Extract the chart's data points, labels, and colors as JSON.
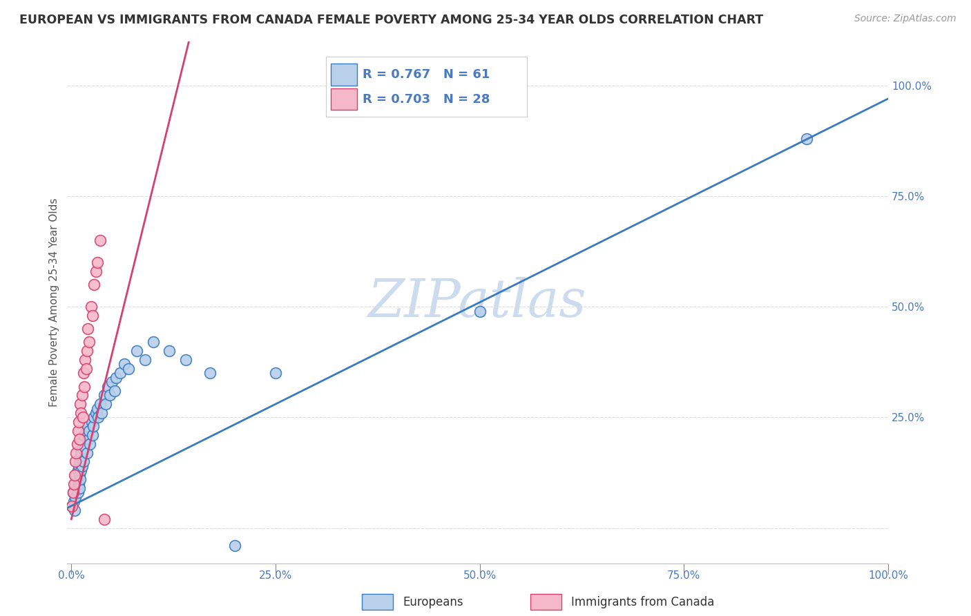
{
  "title": "EUROPEAN VS IMMIGRANTS FROM CANADA FEMALE POVERTY AMONG 25-34 YEAR OLDS CORRELATION CHART",
  "source": "Source: ZipAtlas.com",
  "ylabel": "Female Poverty Among 25-34 Year Olds",
  "xlim": [
    -0.005,
    1.0
  ],
  "ylim": [
    -0.08,
    1.1
  ],
  "x_ticks": [
    0.0,
    0.25,
    0.5,
    0.75,
    1.0
  ],
  "y_ticks": [
    0.0,
    0.25,
    0.5,
    0.75,
    1.0
  ],
  "x_tick_labels": [
    "0.0%",
    "25.0%",
    "50.0%",
    "75.0%",
    "100.0%"
  ],
  "y_tick_labels": [
    "",
    "25.0%",
    "50.0%",
    "75.0%",
    "100.0%"
  ],
  "european_R": 0.767,
  "european_N": 61,
  "canada_R": 0.703,
  "canada_N": 28,
  "european_color": "#b8d0ea",
  "canada_color": "#f5b8c8",
  "european_line_color": "#3a7abf",
  "canada_line_color": "#d44070",
  "watermark": "ZIPatlas",
  "watermark_color": "#ccdcee",
  "background_color": "#ffffff",
  "grid_color": "#dddddd",
  "tick_color": "#4a7abf",
  "eu_line_slope": 0.92,
  "eu_line_intercept": 0.05,
  "ca_line_slope": 7.5,
  "ca_line_intercept": 0.02,
  "european_x": [
    0.001,
    0.002,
    0.003,
    0.004,
    0.005,
    0.005,
    0.006,
    0.007,
    0.008,
    0.008,
    0.009,
    0.009,
    0.01,
    0.01,
    0.01,
    0.011,
    0.011,
    0.012,
    0.012,
    0.013,
    0.013,
    0.014,
    0.015,
    0.015,
    0.016,
    0.017,
    0.018,
    0.019,
    0.02,
    0.021,
    0.022,
    0.023,
    0.025,
    0.026,
    0.027,
    0.028,
    0.03,
    0.032,
    0.033,
    0.035,
    0.037,
    0.04,
    0.042,
    0.045,
    0.047,
    0.05,
    0.053,
    0.055,
    0.06,
    0.065,
    0.07,
    0.08,
    0.09,
    0.1,
    0.12,
    0.14,
    0.17,
    0.2,
    0.25,
    0.5,
    0.9
  ],
  "european_y": [
    0.05,
    0.08,
    0.06,
    0.04,
    0.1,
    0.07,
    0.12,
    0.09,
    0.13,
    0.08,
    0.14,
    0.1,
    0.15,
    0.12,
    0.09,
    0.16,
    0.11,
    0.17,
    0.13,
    0.18,
    0.14,
    0.19,
    0.2,
    0.15,
    0.21,
    0.18,
    0.22,
    0.17,
    0.23,
    0.2,
    0.22,
    0.19,
    0.24,
    0.21,
    0.23,
    0.25,
    0.26,
    0.27,
    0.25,
    0.28,
    0.26,
    0.3,
    0.28,
    0.32,
    0.3,
    0.33,
    0.31,
    0.34,
    0.35,
    0.37,
    0.36,
    0.4,
    0.38,
    0.42,
    0.4,
    0.38,
    0.35,
    -0.04,
    0.35,
    0.49,
    0.88
  ],
  "canada_x": [
    0.001,
    0.002,
    0.003,
    0.004,
    0.005,
    0.006,
    0.007,
    0.008,
    0.009,
    0.01,
    0.011,
    0.012,
    0.013,
    0.014,
    0.015,
    0.016,
    0.017,
    0.018,
    0.019,
    0.02,
    0.022,
    0.024,
    0.026,
    0.028,
    0.03,
    0.032,
    0.035,
    0.04
  ],
  "canada_y": [
    0.05,
    0.08,
    0.1,
    0.12,
    0.15,
    0.17,
    0.19,
    0.22,
    0.24,
    0.2,
    0.28,
    0.26,
    0.3,
    0.25,
    0.35,
    0.32,
    0.38,
    0.36,
    0.4,
    0.45,
    0.42,
    0.5,
    0.48,
    0.55,
    0.58,
    0.6,
    0.65,
    0.02
  ]
}
